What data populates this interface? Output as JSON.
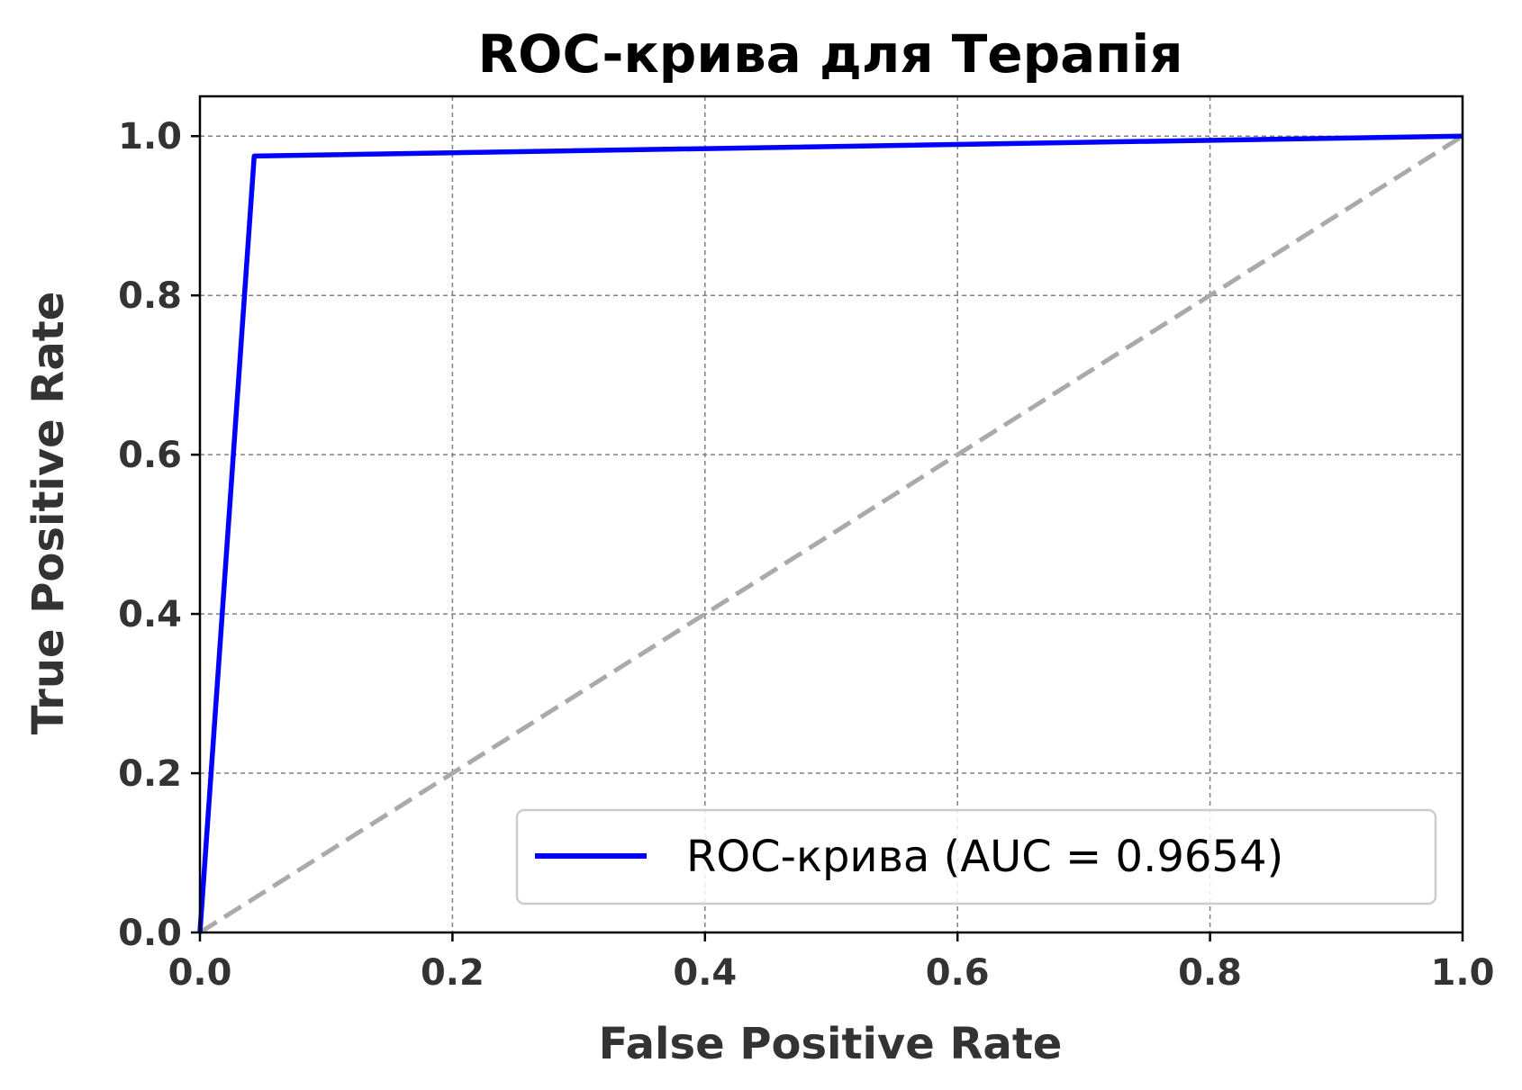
{
  "chart_data": {
    "type": "line",
    "title": "ROC-крива для Терапія",
    "xlabel": "False Positive Rate",
    "ylabel": "True Positive Rate",
    "xlim": [
      0.0,
      1.0
    ],
    "ylim": [
      0.0,
      1.05
    ],
    "x_ticks": [
      0.0,
      0.2,
      0.4,
      0.6,
      0.8,
      1.0
    ],
    "y_ticks": [
      0.0,
      0.2,
      0.4,
      0.6,
      0.8,
      1.0
    ],
    "x_tick_labels": [
      "0.0",
      "0.2",
      "0.4",
      "0.6",
      "0.8",
      "1.0"
    ],
    "y_tick_labels": [
      "0.0",
      "0.2",
      "0.4",
      "0.6",
      "0.8",
      "1.0"
    ],
    "grid": true,
    "legend_position": "lower-right",
    "series": [
      {
        "name": "ROC-крива (AUC = 0.9654)",
        "color": "#0000ff",
        "style": "solid",
        "x": [
          0.0,
          0.043,
          1.0
        ],
        "y": [
          0.0,
          0.975,
          1.0
        ]
      },
      {
        "color": "#aaaaaa",
        "style": "dashed",
        "x": [
          0.0,
          1.0
        ],
        "y": [
          0.0,
          1.0
        ]
      }
    ]
  }
}
